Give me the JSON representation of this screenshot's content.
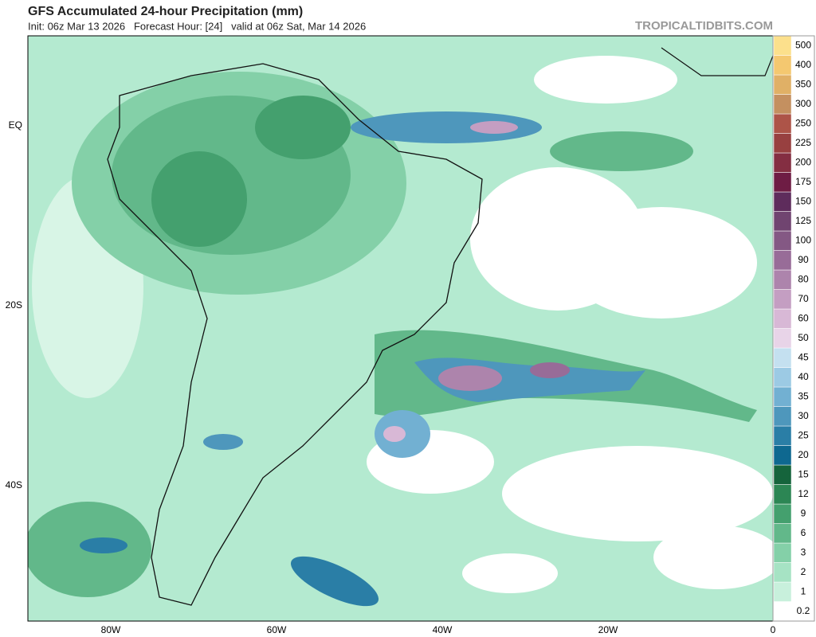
{
  "header": {
    "title": "GFS Accumulated 24-hour Precipitation (mm)",
    "subtitle": "Init: 06z Mar 13 2026   Forecast Hour: [24]   valid at 06z Sat, Mar 14 2026",
    "brand": "TROPICALTIDBITS.COM"
  },
  "map": {
    "lat_labels": [
      "EQ",
      "20S",
      "40S"
    ],
    "lon_labels": [
      "80W",
      "60W",
      "40W",
      "20W",
      "0"
    ]
  },
  "colorbar": {
    "levels": [
      0.2,
      1,
      2,
      3,
      6,
      9,
      12,
      15,
      20,
      25,
      30,
      35,
      40,
      45,
      50,
      60,
      70,
      80,
      90,
      100,
      125,
      150,
      175,
      200,
      225,
      250,
      300,
      350,
      400,
      500
    ],
    "colors": [
      "#ffffff",
      "#c8f0dc",
      "#a6e3c4",
      "#84d0a8",
      "#62b88a",
      "#44a06e",
      "#2c8654",
      "#15643c",
      "#0e6890",
      "#2a7ea6",
      "#4e97bc",
      "#72b0d2",
      "#9ccae4",
      "#c4e0f0",
      "#e8d4e8",
      "#d8b8d6",
      "#c49ec2",
      "#ad84ac",
      "#986c98",
      "#845884",
      "#704470",
      "#5e2c5c",
      "#6e1c44",
      "#842e42",
      "#984040",
      "#ad5448",
      "#c49060",
      "#e0b066",
      "#f4c870",
      "#fce08c"
    ]
  }
}
